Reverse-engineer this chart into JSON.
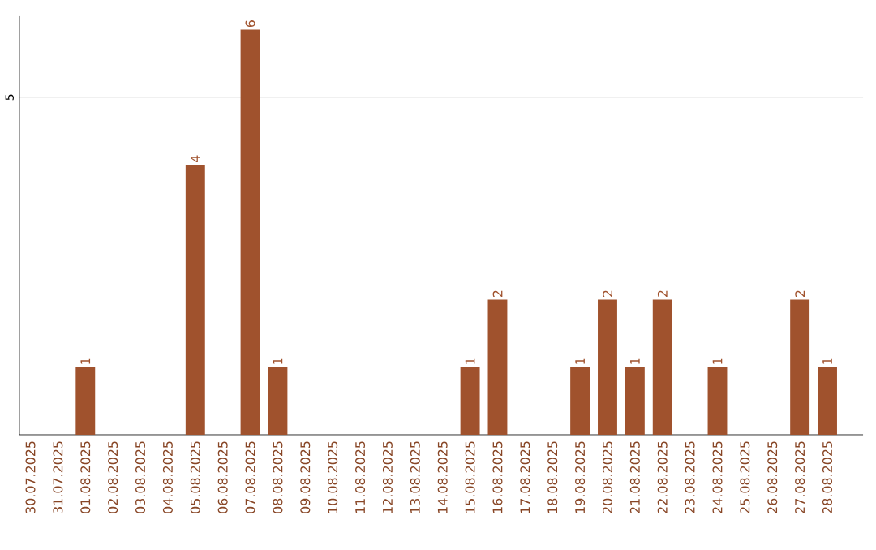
{
  "chart_data": {
    "type": "bar",
    "categories": [
      "30.07.2025",
      "31.07.2025",
      "01.08.2025",
      "02.08.2025",
      "03.08.2025",
      "04.08.2025",
      "05.08.2025",
      "06.08.2025",
      "07.08.2025",
      "08.08.2025",
      "09.08.2025",
      "10.08.2025",
      "11.08.2025",
      "12.08.2025",
      "13.08.2025",
      "14.08.2025",
      "15.08.2025",
      "16.08.2025",
      "17.08.2025",
      "18.08.2025",
      "19.08.2025",
      "20.08.2025",
      "21.08.2025",
      "22.08.2025",
      "23.08.2025",
      "24.08.2025",
      "25.08.2025",
      "26.08.2025",
      "27.08.2025",
      "28.08.2025"
    ],
    "values": [
      0,
      0,
      1,
      0,
      0,
      0,
      4,
      0,
      6,
      1,
      0,
      0,
      0,
      0,
      0,
      0,
      1,
      2,
      0,
      0,
      1,
      2,
      1,
      2,
      0,
      1,
      0,
      0,
      2,
      1
    ],
    "value_labels": [
      null,
      null,
      "1",
      null,
      null,
      null,
      "4",
      null,
      "6",
      "1",
      null,
      null,
      null,
      null,
      null,
      null,
      "1",
      "2",
      null,
      null,
      "1",
      "2",
      "1",
      "2",
      null,
      "1",
      null,
      null,
      "2",
      "1"
    ],
    "color": "#a0522d",
    "ylim": [
      0,
      6.2
    ],
    "yticks": [
      5
    ],
    "grid": "y"
  }
}
